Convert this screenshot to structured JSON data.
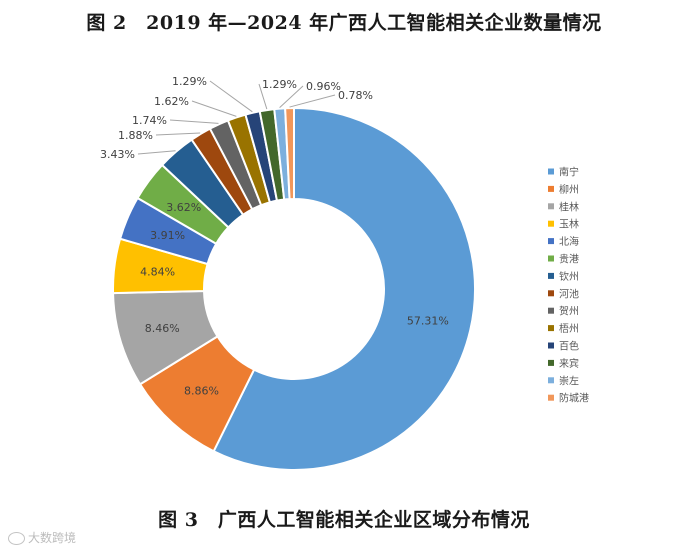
{
  "top_caption": "图 2　2019 年—2024 年广西人工智能相关企业数量情况",
  "figure_caption": "图 3　广西人工智能相关企业区域分布情况",
  "watermark": "大数跨境",
  "chart_data": {
    "type": "pie",
    "variant": "donut",
    "title": "",
    "legend_position": "right",
    "slices": [
      {
        "label": "南宁",
        "value": 57.31,
        "display": "57.31%",
        "color": "#5b9bd5"
      },
      {
        "label": "柳州",
        "value": 8.86,
        "display": "8.86%",
        "color": "#ed7d31"
      },
      {
        "label": "桂林",
        "value": 8.46,
        "display": "8.46%",
        "color": "#a5a5a5"
      },
      {
        "label": "玉林",
        "value": 4.84,
        "display": "4.84%",
        "color": "#ffc000"
      },
      {
        "label": "北海",
        "value": 3.91,
        "display": "3.91%",
        "color": "#4472c4"
      },
      {
        "label": "贵港",
        "value": 3.62,
        "display": "3.62%",
        "color": "#70ad47"
      },
      {
        "label": "钦州",
        "value": 3.43,
        "display": "3.43%",
        "color": "#255e91"
      },
      {
        "label": "河池",
        "value": 1.88,
        "display": "1.88%",
        "color": "#9e480e"
      },
      {
        "label": "贺州",
        "value": 1.74,
        "display": "1.74%",
        "color": "#636363"
      },
      {
        "label": "梧州",
        "value": 1.62,
        "display": "1.62%",
        "color": "#997300"
      },
      {
        "label": "百色",
        "value": 1.29,
        "display": "1.29%",
        "color": "#264478"
      },
      {
        "label": "来宾",
        "value": 1.29,
        "display": "1.29%",
        "color": "#43682b"
      },
      {
        "label": "崇左",
        "value": 0.96,
        "display": "0.96%",
        "color": "#7cafdd"
      },
      {
        "label": "防城港",
        "value": 0.78,
        "display": "0.78%",
        "color": "#f1975a"
      }
    ]
  }
}
